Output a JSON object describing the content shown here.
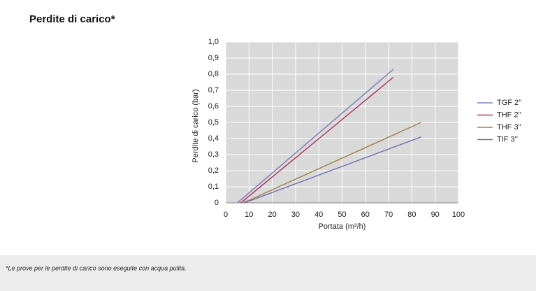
{
  "header": {
    "title": "Perdite di carico*"
  },
  "chart_data": {
    "type": "line",
    "xlabel": "Portata (m³/h)",
    "ylabel": "Perdite di carico (bar)",
    "xlim": [
      0,
      100
    ],
    "xticks": [
      0,
      10,
      20,
      30,
      40,
      50,
      60,
      70,
      80,
      90,
      100
    ],
    "ylim": [
      0,
      1.0
    ],
    "yticks": [
      0,
      {
        "value": 0.1,
        "label": "0,1"
      },
      {
        "value": 0.2,
        "label": "0,2"
      },
      {
        "value": 0.3,
        "label": "0,3"
      },
      {
        "value": 0.4,
        "label": "0,4"
      },
      {
        "value": 0.5,
        "label": "0,5"
      },
      {
        "value": 0.6,
        "label": "0,6"
      },
      {
        "value": 0.7,
        "label": "0,7"
      },
      {
        "value": 0.8,
        "label": "0,8"
      },
      {
        "value": 0.9,
        "label": "0,9"
      },
      {
        "value": 1.0,
        "label": "1,0"
      }
    ],
    "grid": true,
    "legend": "right",
    "series": [
      {
        "name": "TGF 2''",
        "color": "#7b80be",
        "x": [
          5,
          72
        ],
        "values": [
          0,
          0.83
        ]
      },
      {
        "name": "THF 2''",
        "color": "#b3375e",
        "x": [
          6.5,
          72
        ],
        "values": [
          0,
          0.78
        ]
      },
      {
        "name": "THF 3''",
        "color": "#a3834a",
        "x": [
          7.5,
          84
        ],
        "values": [
          0,
          0.5
        ]
      },
      {
        "name": "TIF 3''",
        "color": "#7571b3",
        "x": [
          8,
          84
        ],
        "values": [
          0,
          0.41
        ]
      }
    ]
  },
  "footnote": "*Le prove per le perdite di carico sono eseguite con acqua pulita."
}
